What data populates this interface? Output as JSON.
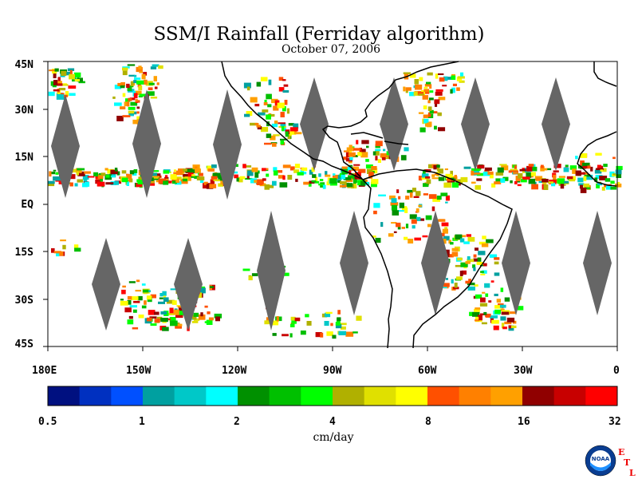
{
  "map": {
    "title": "SSM/I Rainfall (Ferriday algorithm)",
    "date": "October 07, 2006",
    "extent": {
      "lon_min": 180,
      "lon_max": 360,
      "lat_min": -45,
      "lat_max": 45
    },
    "lat_labels": [
      "45N",
      "30N",
      "15N",
      "EQ",
      "15S",
      "30S",
      "45S"
    ],
    "lon_labels": [
      "180E",
      "150W",
      "120W",
      "90W",
      "60W",
      "30W",
      "0"
    ],
    "no_data_color": "#666666",
    "coastline_color": "#000000"
  },
  "colorbar": {
    "tick_labels": [
      "0.5",
      "1",
      "2",
      "4",
      "8",
      "16",
      "32"
    ],
    "units": "cm/day",
    "colors": [
      "#001080",
      "#0030c0",
      "#0050ff",
      "#00a0a0",
      "#00c8c8",
      "#00ffff",
      "#009000",
      "#00c000",
      "#00ff00",
      "#b0b000",
      "#e0e000",
      "#ffff00",
      "#ff5000",
      "#ff8000",
      "#ffa000",
      "#900000",
      "#c80000",
      "#ff0000"
    ]
  },
  "logo": {
    "text": "NOAA",
    "side_letters": [
      "E",
      "T",
      "L"
    ]
  }
}
